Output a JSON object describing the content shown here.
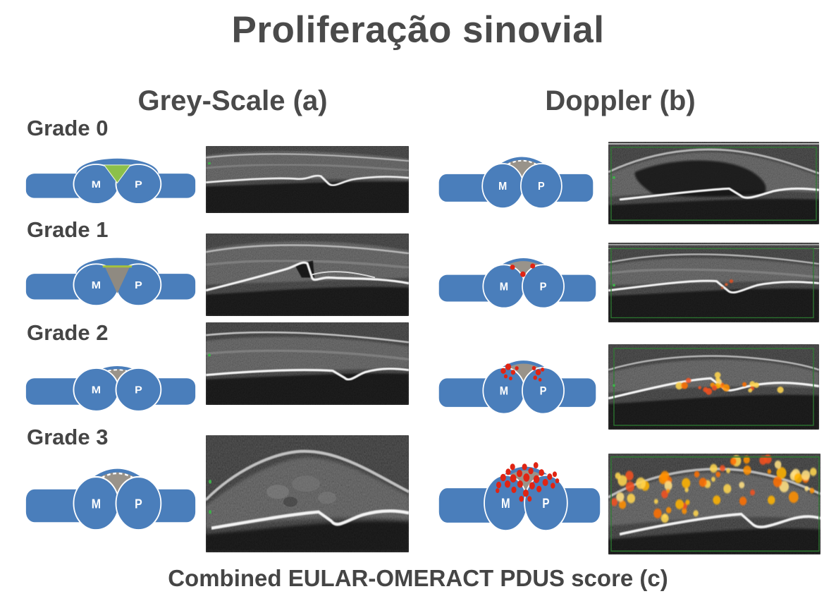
{
  "title": "Proliferação sinovial",
  "columns": {
    "grey_scale": "Grey-Scale (a)",
    "doppler": "Doppler (b)"
  },
  "caption": "Combined EULAR-OMERACT PDUS score (c)",
  "bone_labels": {
    "metacarpal": "M",
    "phalanx": "P"
  },
  "colors": {
    "bone_blue": "#4a7ebb",
    "effusion_green": "#8cc04a",
    "synovium_gray": "#99938a",
    "doppler_red": "#e02413",
    "doppler_orange": "#ff9320",
    "roi_green": "#2e7d32",
    "text": "#474747"
  },
  "rows": [
    {
      "grade_label": "Grade 0",
      "grey_schematic": {
        "cap": "bump",
        "triangle": "green"
      },
      "doppler_schematic": {
        "cap": "dome",
        "dome": "large",
        "dashed": true,
        "dots_level": 0
      },
      "doppler_signal_level": 0
    },
    {
      "grade_label": "Grade 1",
      "grey_schematic": {
        "cap": "bump",
        "triangle": "gray"
      },
      "doppler_schematic": {
        "cap": "dome",
        "dome": "large",
        "dashed": false,
        "dots_level": 1
      },
      "doppler_signal_level": 1
    },
    {
      "grade_label": "Grade 2",
      "grey_schematic": {
        "cap": "dome",
        "dome": "small",
        "dashed": true,
        "dots_level": 0
      },
      "doppler_schematic": {
        "cap": "dome",
        "dome": "large",
        "dashed": false,
        "dots_level": 2
      },
      "doppler_signal_level": 2
    },
    {
      "grade_label": "Grade 3",
      "grey_schematic": {
        "cap": "dome",
        "dome": "large",
        "dashed": true,
        "dots_level": 0
      },
      "doppler_schematic": {
        "cap": "dome",
        "dome": "large",
        "dashed": false,
        "dots_level": 3
      },
      "doppler_signal_level": 3
    }
  ]
}
